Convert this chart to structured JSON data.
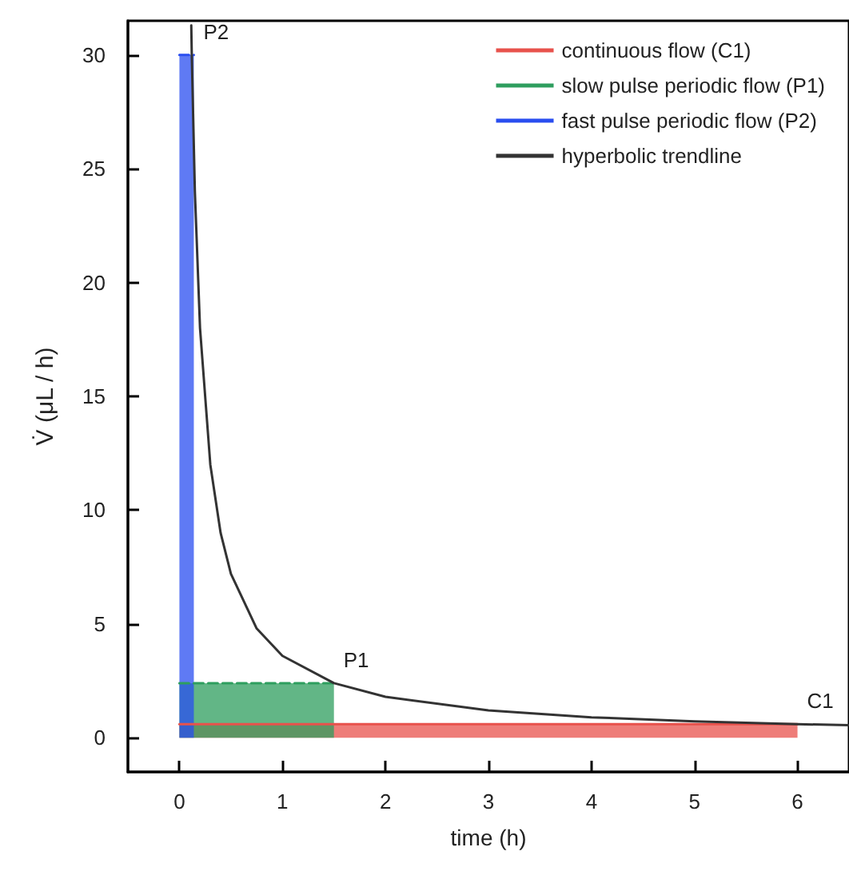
{
  "chart_data": {
    "type": "area",
    "xlabel": "time (h)",
    "ylabel": "V̇ (μL / h)",
    "xlim": [
      -0.5,
      6.5
    ],
    "xticks": [
      0,
      1,
      2,
      3,
      4,
      5,
      6
    ],
    "ylim": [
      -1.5,
      31.5
    ],
    "yticks": [
      0,
      5,
      10,
      15,
      20,
      25,
      30
    ],
    "grid": false,
    "legend": "top right",
    "series": [
      {
        "name": "continuous flow (C1)",
        "color": "#e8524c",
        "line_style": "solid",
        "x": [
          0,
          6
        ],
        "values": [
          0.6,
          0.6
        ]
      },
      {
        "name": "slow pulse periodic flow (P1)",
        "color": "#2e9e5e",
        "line_style": "dashed",
        "x": [
          0,
          1.5
        ],
        "values": [
          2.4,
          2.4
        ]
      },
      {
        "name": "fast pulse periodic flow (P2)",
        "color": "#2a4ef0",
        "line_style": "dashed",
        "x": [
          0,
          0.14
        ],
        "values": [
          30,
          30
        ]
      },
      {
        "name": "hyperbolic trendline",
        "type": "line",
        "color": "#333333",
        "line_style": "solid",
        "x": [
          0.115,
          0.12,
          0.15,
          0.2,
          0.3,
          0.4,
          0.5,
          0.75,
          1,
          1.5,
          2,
          3,
          4,
          5,
          6,
          6.5
        ],
        "values": [
          31.3,
          30,
          24,
          18,
          12,
          9,
          7.2,
          4.8,
          3.6,
          2.4,
          1.8,
          1.2,
          0.9,
          0.72,
          0.6,
          0.55
        ]
      }
    ],
    "annotations": [
      {
        "text": "P2",
        "x": 0.14,
        "y": 30
      },
      {
        "text": "P1",
        "x": 1.5,
        "y": 2.4
      },
      {
        "text": "C1",
        "x": 6,
        "y": 0.6
      }
    ]
  }
}
